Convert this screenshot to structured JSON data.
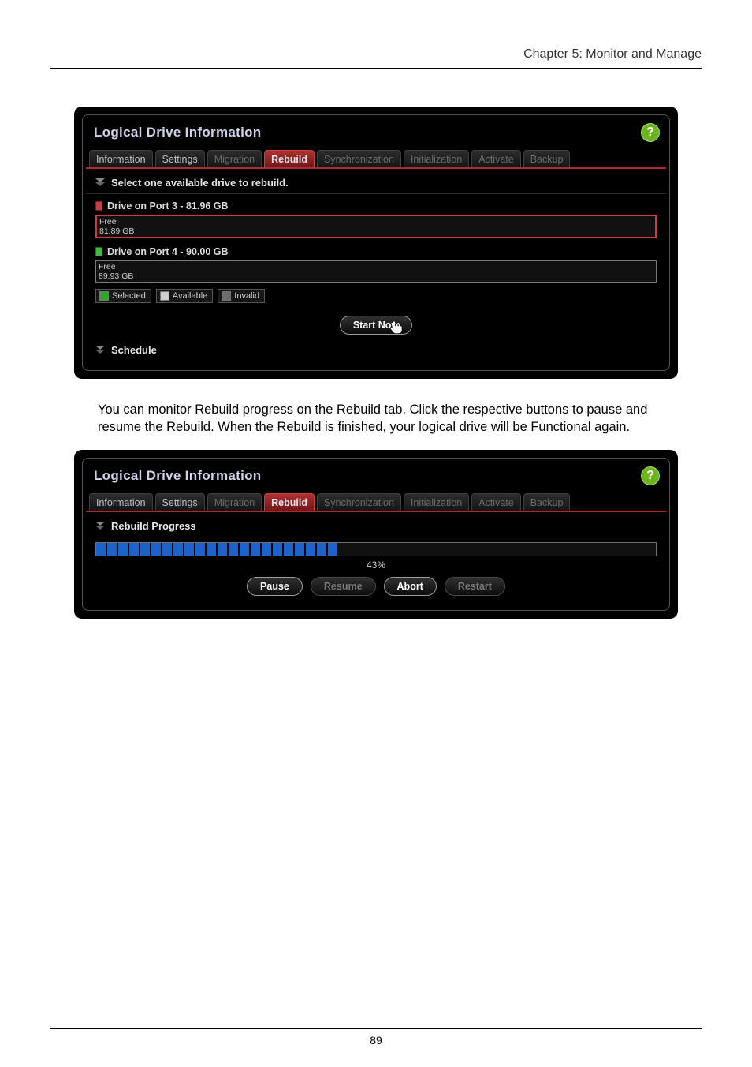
{
  "chapter": "Chapter 5: Monitor and Manage",
  "page_number": "89",
  "panel1": {
    "title": "Logical Drive Information",
    "help_glyph": "?",
    "tabs": [
      {
        "label": "Information",
        "state": "enabled"
      },
      {
        "label": "Settings",
        "state": "enabled"
      },
      {
        "label": "Migration",
        "state": "disabled"
      },
      {
        "label": "Rebuild",
        "state": "active"
      },
      {
        "label": "Synchronization",
        "state": "disabled"
      },
      {
        "label": "Initialization",
        "state": "disabled"
      },
      {
        "label": "Activate",
        "state": "disabled"
      },
      {
        "label": "Backup",
        "state": "disabled"
      }
    ],
    "section_select": "Select one available drive to rebuild.",
    "drives": [
      {
        "head": "Drive on Port 3 - 81.96 GB",
        "line1": "Free",
        "line2": "81.89 GB",
        "selected": true,
        "icon_color": "red"
      },
      {
        "head": "Drive on Port 4 - 90.00 GB",
        "line1": "Free",
        "line2": "89.93 GB",
        "selected": false,
        "icon_color": "green"
      }
    ],
    "legend": {
      "selected": "Selected",
      "available": "Available",
      "invalid": "Invalid"
    },
    "start_btn": "Start Now",
    "schedule": "Schedule"
  },
  "body_text": "You can monitor Rebuild progress on the Rebuild tab. Click the respective buttons to pause and resume the Rebuild. When the Rebuild is finished, your logical drive will be Functional again.",
  "panel2": {
    "title": "Logical Drive Information",
    "help_glyph": "?",
    "tabs": [
      {
        "label": "Information",
        "state": "enabled"
      },
      {
        "label": "Settings",
        "state": "enabled"
      },
      {
        "label": "Migration",
        "state": "disabled"
      },
      {
        "label": "Rebuild",
        "state": "active"
      },
      {
        "label": "Synchronization",
        "state": "disabled"
      },
      {
        "label": "Initialization",
        "state": "disabled"
      },
      {
        "label": "Activate",
        "state": "disabled"
      },
      {
        "label": "Backup",
        "state": "disabled"
      }
    ],
    "progress_title": "Rebuild Progress",
    "progress_pct": 43,
    "progress_label": "43%",
    "buttons": {
      "pause": {
        "label": "Pause",
        "enabled": true
      },
      "resume": {
        "label": "Resume",
        "enabled": false
      },
      "abort": {
        "label": "Abort",
        "enabled": true
      },
      "restart": {
        "label": "Restart",
        "enabled": false
      }
    }
  },
  "colors": {
    "panel_bg": "#000000",
    "panel_title": "#cfd3ea",
    "help_bg": "#6db421",
    "tab_active_bg_top": "#b13131",
    "tab_active_bg_bot": "#6f1818",
    "tab_underline": "#b02a2a",
    "drive_selected_border": "#d23a3a",
    "legend_selected": "#2aa82a",
    "legend_available": "#cfcfcf",
    "legend_invalid": "#6d6d6d",
    "progress_fill": "#1d62c9"
  }
}
